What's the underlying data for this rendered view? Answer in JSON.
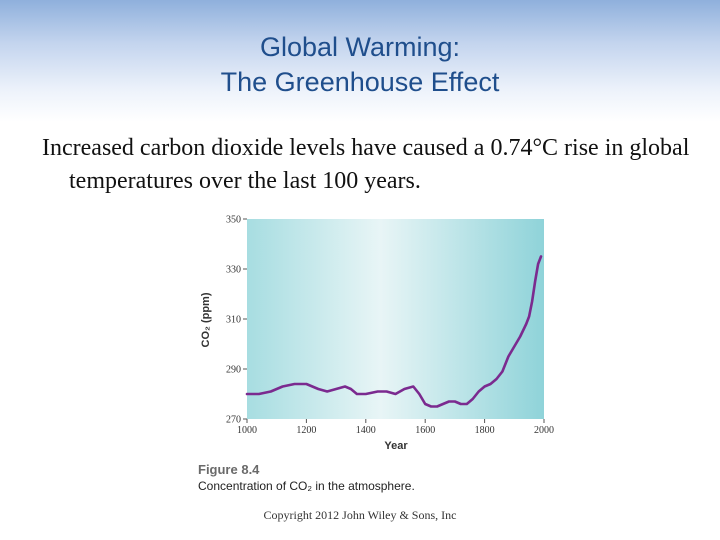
{
  "slide": {
    "title_line1": "Global Warming:",
    "title_line2": "The Greenhouse Effect",
    "body": "Increased carbon dioxide levels have caused a 0.74°C rise in global temperatures over the last 100 years.",
    "copyright": "Copyright 2012 John Wiley & Sons, Inc"
  },
  "figure": {
    "label": "Figure 8.4",
    "caption": "Concentration of CO₂ in the atmosphere."
  },
  "colors": {
    "title": "#1f4e8c",
    "line": "#7b2a8f",
    "plot_bg_light": "#e8f5f6",
    "plot_bg_dark": "#8fd3d9"
  },
  "chart_data": {
    "type": "line",
    "title": "",
    "xlabel": "Year",
    "ylabel": "CO₂ (ppm)",
    "xlim": [
      1000,
      2000
    ],
    "ylim": [
      270,
      350
    ],
    "xticks": [
      1000,
      1200,
      1400,
      1600,
      1800,
      2000
    ],
    "yticks": [
      270,
      290,
      310,
      330,
      350
    ],
    "grid": false,
    "series": [
      {
        "x": [
          1000,
          1040,
          1080,
          1120,
          1160,
          1200,
          1240,
          1270,
          1300,
          1330,
          1350,
          1370,
          1400,
          1440,
          1470,
          1500,
          1530,
          1560,
          1580,
          1600,
          1620,
          1640,
          1660,
          1680,
          1700,
          1720,
          1740,
          1760,
          1780,
          1800,
          1820,
          1840,
          1860,
          1880,
          1900,
          1920,
          1940,
          1950,
          1960,
          1970,
          1980,
          1990
        ],
        "y": [
          280,
          280,
          281,
          283,
          284,
          284,
          282,
          281,
          282,
          283,
          282,
          280,
          280,
          281,
          281,
          280,
          282,
          283,
          280,
          276,
          275,
          275,
          276,
          277,
          277,
          276,
          276,
          278,
          281,
          283,
          284,
          286,
          289,
          295,
          299,
          303,
          308,
          311,
          317,
          325,
          332,
          335
        ]
      }
    ]
  }
}
